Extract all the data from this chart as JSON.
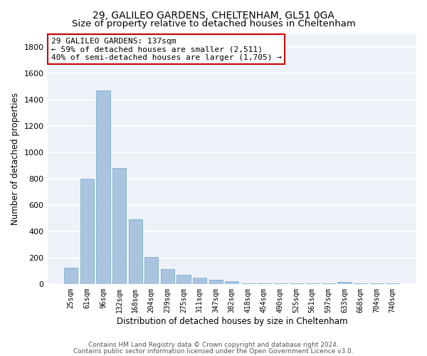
{
  "title1": "29, GALILEO GARDENS, CHELTENHAM, GL51 0GA",
  "title2": "Size of property relative to detached houses in Cheltenham",
  "xlabel": "Distribution of detached houses by size in Cheltenham",
  "ylabel": "Number of detached properties",
  "categories": [
    "25sqm",
    "61sqm",
    "96sqm",
    "132sqm",
    "168sqm",
    "204sqm",
    "239sqm",
    "275sqm",
    "311sqm",
    "347sqm",
    "382sqm",
    "418sqm",
    "454sqm",
    "490sqm",
    "525sqm",
    "561sqm",
    "597sqm",
    "633sqm",
    "668sqm",
    "704sqm",
    "740sqm"
  ],
  "values": [
    125,
    800,
    1470,
    880,
    490,
    205,
    110,
    70,
    48,
    32,
    22,
    3,
    2,
    2,
    2,
    2,
    2,
    18,
    2,
    2,
    2
  ],
  "bar_color": "#aac4e0",
  "bar_edge_color": "#7aafd0",
  "annotation_line1": "29 GALILEO GARDENS: 137sqm",
  "annotation_line2": "← 59% of detached houses are smaller (2,511)",
  "annotation_line3": "40% of semi-detached houses are larger (1,705) →",
  "annotation_box_facecolor": "#ffffff",
  "annotation_border_color": "#cc0000",
  "ylim": [
    0,
    1900
  ],
  "yticks": [
    0,
    200,
    400,
    600,
    800,
    1000,
    1200,
    1400,
    1600,
    1800
  ],
  "bg_color": "#eef2f8",
  "grid_color": "#ffffff",
  "footer1": "Contains HM Land Registry data © Crown copyright and database right 2024.",
  "footer2": "Contains public sector information licensed under the Open Government Licence v3.0.",
  "title1_fontsize": 10,
  "title2_fontsize": 9.5,
  "tick_fontsize": 7,
  "ylabel_fontsize": 8.5,
  "xlabel_fontsize": 8.5,
  "ann_fontsize": 8
}
